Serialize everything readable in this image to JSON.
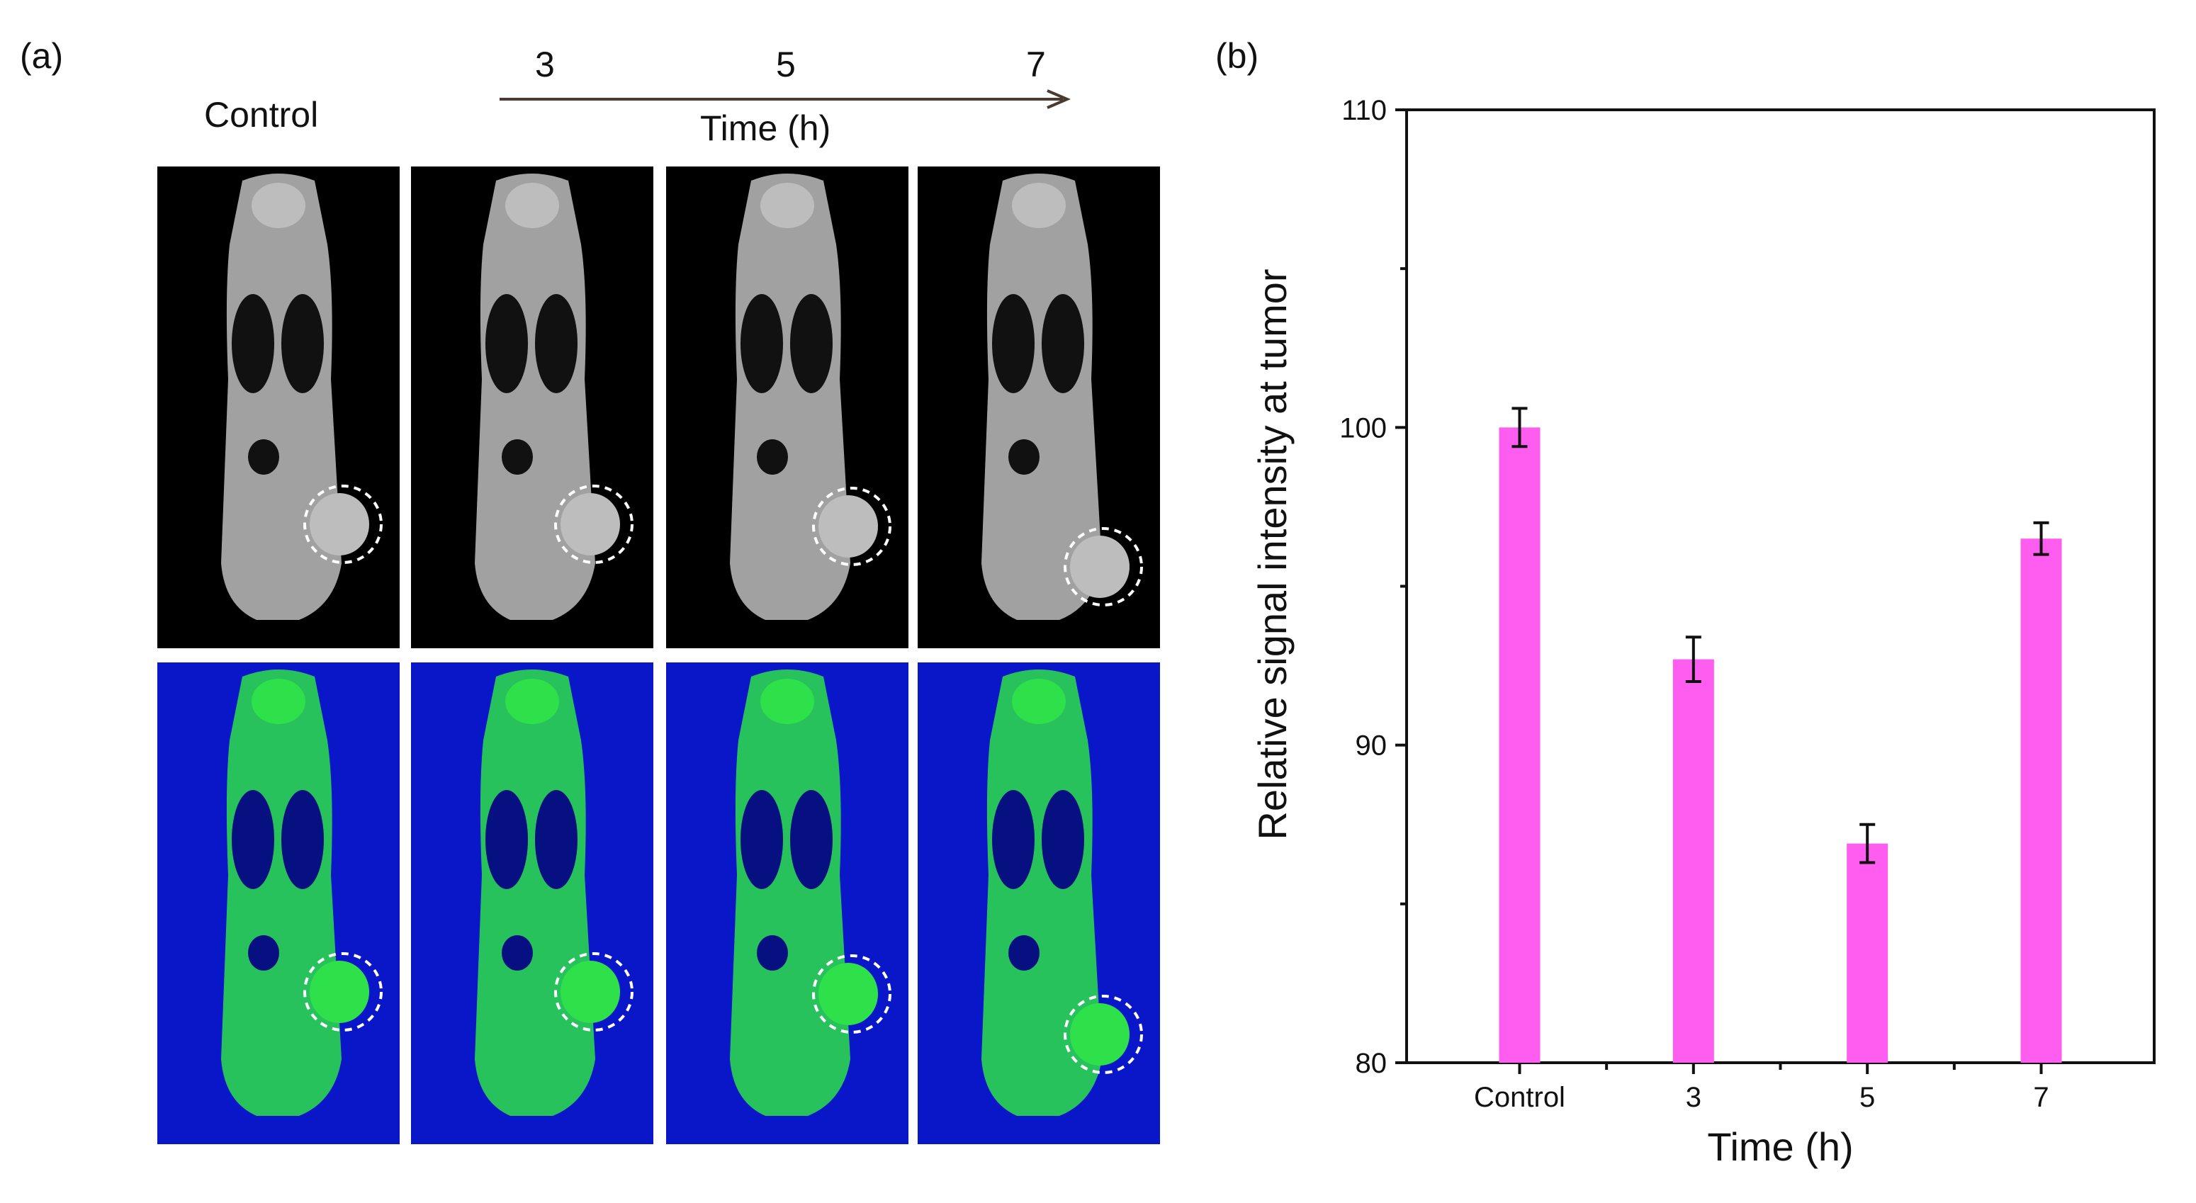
{
  "panel_a": {
    "label": "(a)",
    "control_label": "Control",
    "timeline": {
      "ticks": [
        "3",
        "5",
        "7"
      ],
      "axis_label": "Time (h)"
    },
    "rows": [
      {
        "name": "grayscale",
        "color": "#bdbdbd"
      },
      {
        "name": "colormap",
        "color": "#2ee04a"
      }
    ]
  },
  "panel_b": {
    "label": "(b)"
  },
  "chart_data": {
    "type": "bar",
    "categories": [
      "Control",
      "3",
      "5",
      "7"
    ],
    "values": [
      100.0,
      92.7,
      86.9,
      96.5
    ],
    "errors": [
      0.6,
      0.7,
      0.6,
      0.5
    ],
    "ylim": [
      80,
      110
    ],
    "yticks": [
      80,
      90,
      100,
      110
    ],
    "xlabel": "Time (h)",
    "ylabel": "Relative signal intensity at tumor",
    "bar_color": "#ff5cf0",
    "legend": "none",
    "grid": false
  }
}
